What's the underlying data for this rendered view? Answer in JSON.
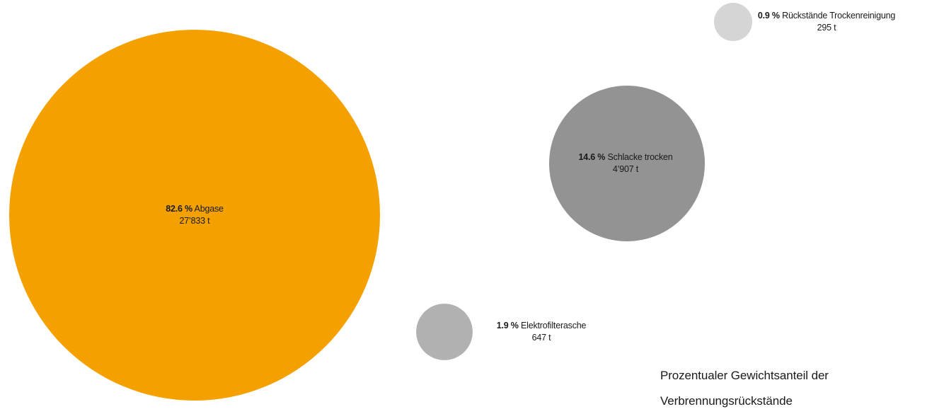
{
  "chart_data": {
    "type": "bubble",
    "title": "Prozentualer Gewichtsanteil der Verbrennungsrückstände",
    "title_lines": [
      "Prozentualer Gewichtsanteil der",
      "Verbrennungsrückstände"
    ],
    "items": [
      {
        "name": "Abgase",
        "percent": 82.6,
        "percent_label": "82.6 %",
        "tonnes": 27833,
        "tonnes_label": "27’833 t",
        "color": "#f4a100"
      },
      {
        "name": "Schlacke trocken",
        "percent": 14.6,
        "percent_label": "14.6 %",
        "tonnes": 4907,
        "tonnes_label": "4’907 t",
        "color": "#939393"
      },
      {
        "name": "Elektrofilterasche",
        "percent": 1.9,
        "percent_label": "1.9 %",
        "tonnes": 647,
        "tonnes_label": "647 t",
        "color": "#b1b1b1"
      },
      {
        "name": "Rückstände Trockenreinigung",
        "percent": 0.9,
        "percent_label": "0.9 %",
        "tonnes": 295,
        "tonnes_label": "295 t",
        "color": "#d5d5d5"
      }
    ]
  }
}
